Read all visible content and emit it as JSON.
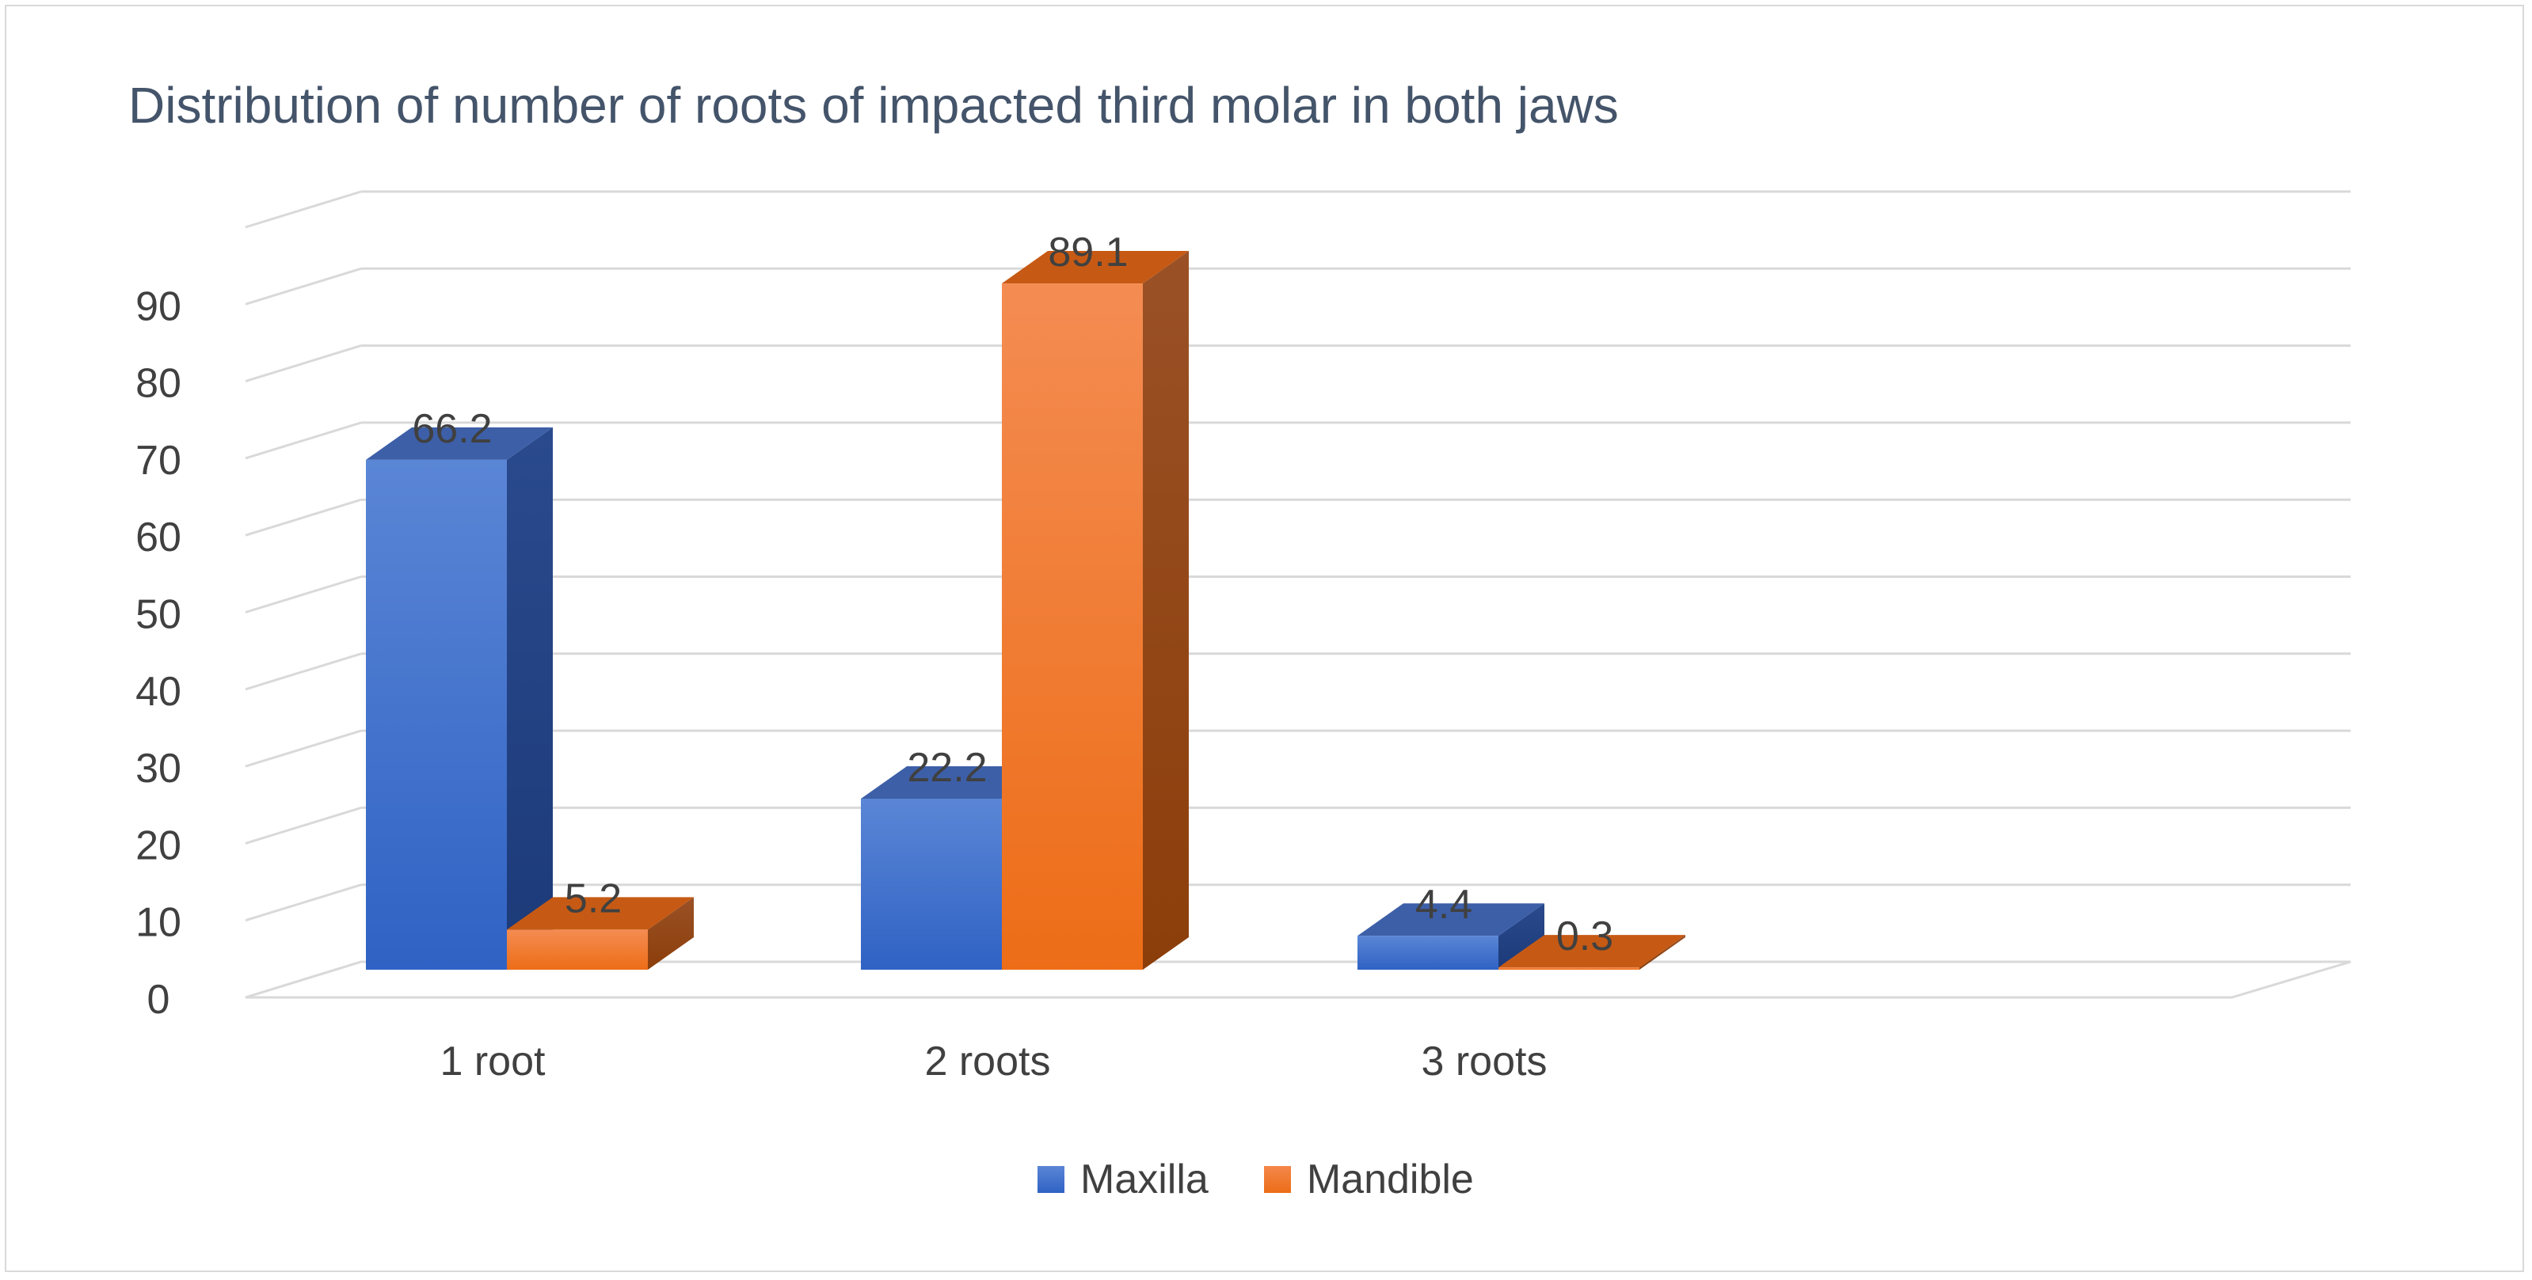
{
  "chart_data": {
    "type": "bar",
    "title": "Distribution of number of roots of impacted third molar  in both jaws",
    "categories": [
      "1 root",
      "2 roots",
      "3 roots"
    ],
    "series": [
      {
        "name": "Maxilla",
        "values": [
          66.2,
          22.2,
          4.4
        ]
      },
      {
        "name": "Mandible",
        "values": [
          5.2,
          89.1,
          0.3
        ]
      }
    ],
    "value_labels": [
      [
        "66.2",
        "22.2",
        "4.4"
      ],
      [
        "5.2",
        "89.1",
        "0.3"
      ]
    ],
    "yticks": [
      "0",
      "10",
      "20",
      "30",
      "40",
      "50",
      "60",
      "70",
      "80",
      "90"
    ],
    "ylim": [
      0,
      100
    ],
    "xlabel": "",
    "ylabel": "",
    "grid": true,
    "legend_position": "bottom",
    "colors": {
      "Maxilla": {
        "front_top": "#5b86d6",
        "front_bottom": "#2f62c4",
        "side": "#1f3f7e",
        "top": "#3d5fa8"
      },
      "Mandible": {
        "front_top": "#f48c52",
        "front_bottom": "#ed6d17",
        "side": "#b04f10",
        "top": "#c65a14"
      }
    }
  }
}
